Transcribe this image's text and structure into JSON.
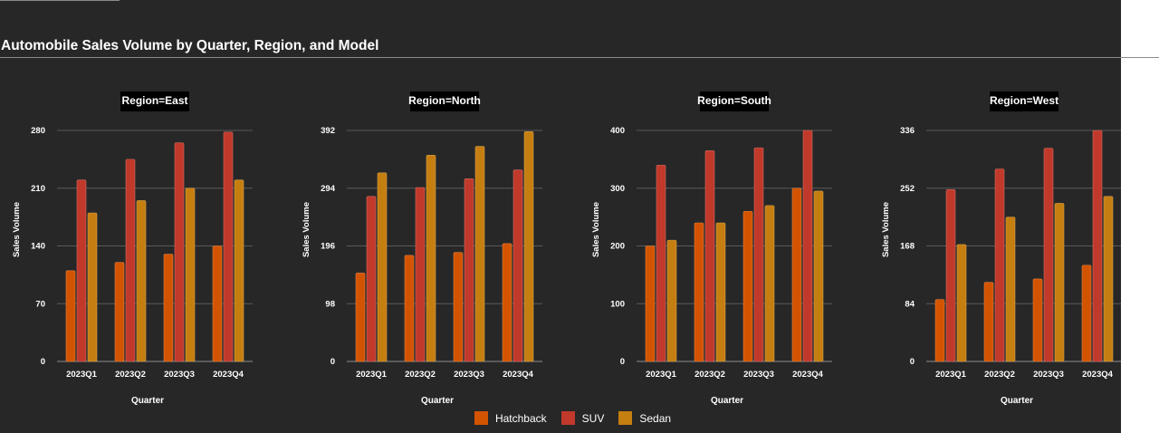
{
  "chart_data": {
    "type": "bar",
    "title": "Automobile Sales Volume by Quarter, Region, and Model",
    "xlabel": "Quarter",
    "ylabel": "Sales Volume",
    "categories": [
      "2023Q1",
      "2023Q2",
      "2023Q3",
      "2023Q4"
    ],
    "legend_position": "bottom-center",
    "grid": true,
    "colors": {
      "Hatchback": "#d35400",
      "SUV": "#c0392b",
      "Sedan": "#c57e10"
    },
    "panels": [
      {
        "title": "Region=East",
        "ylim": [
          0,
          280
        ],
        "yticks": [
          0,
          70,
          140,
          210,
          280
        ],
        "series": [
          {
            "name": "Hatchback",
            "values": [
              110,
              120,
              130,
              140
            ]
          },
          {
            "name": "SUV",
            "values": [
              220,
              245,
              265,
              278
            ]
          },
          {
            "name": "Sedan",
            "values": [
              180,
              195,
              210,
              220
            ]
          }
        ]
      },
      {
        "title": "Region=North",
        "ylim": [
          0,
          392
        ],
        "yticks": [
          0,
          98,
          196,
          294,
          392
        ],
        "series": [
          {
            "name": "Hatchback",
            "values": [
              150,
              180,
              185,
              200
            ]
          },
          {
            "name": "SUV",
            "values": [
              280,
              295,
              310,
              325
            ]
          },
          {
            "name": "Sedan",
            "values": [
              320,
              350,
              365,
              390
            ]
          }
        ]
      },
      {
        "title": "Region=South",
        "ylim": [
          0,
          400
        ],
        "yticks": [
          0,
          100,
          200,
          300,
          400
        ],
        "series": [
          {
            "name": "Hatchback",
            "values": [
              200,
              240,
              260,
              300
            ]
          },
          {
            "name": "SUV",
            "values": [
              340,
              365,
              370,
              400
            ]
          },
          {
            "name": "Sedan",
            "values": [
              210,
              240,
              270,
              295
            ]
          }
        ]
      },
      {
        "title": "Region=West",
        "ylim": [
          0,
          336
        ],
        "yticks": [
          0,
          84,
          168,
          252,
          336
        ],
        "series": [
          {
            "name": "Hatchback",
            "values": [
              90,
              115,
              120,
              140
            ]
          },
          {
            "name": "SUV",
            "values": [
              250,
              280,
              310,
              336
            ]
          },
          {
            "name": "Sedan",
            "values": [
              170,
              210,
              230,
              240
            ]
          }
        ]
      }
    ]
  }
}
